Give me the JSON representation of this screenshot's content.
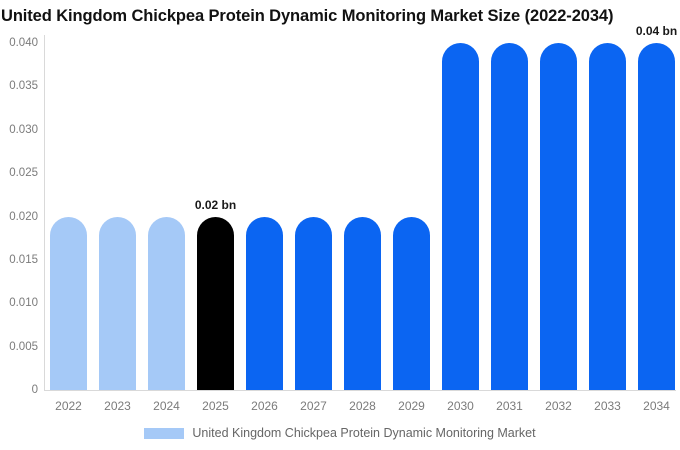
{
  "title": "United Kingdom Chickpea Protein Dynamic Monitoring Market Size (2022-2034)",
  "legend": {
    "label": "United Kingdom Chickpea Protein Dynamic Monitoring Market",
    "swatch_color": "#a5c9f7"
  },
  "colors": {
    "light_blue": "#a5c9f7",
    "blue": "#0b65f2",
    "black": "#000000",
    "axis_text": "#7b7b7b",
    "axis_line": "#d9d9d9",
    "annotation_text": "#1a1a1a"
  },
  "chart_data": {
    "type": "bar",
    "title": "United Kingdom Chickpea Protein Dynamic Monitoring Market Size (2022-2034)",
    "xlabel": "",
    "ylabel": "",
    "categories": [
      "2022",
      "2023",
      "2024",
      "2025",
      "2026",
      "2027",
      "2028",
      "2029",
      "2030",
      "2031",
      "2032",
      "2033",
      "2034"
    ],
    "values": [
      0.02,
      0.02,
      0.02,
      0.02,
      0.02,
      0.02,
      0.02,
      0.02,
      0.04,
      0.04,
      0.04,
      0.04,
      0.04
    ],
    "bar_colors": [
      "light_blue",
      "light_blue",
      "light_blue",
      "black",
      "blue",
      "blue",
      "blue",
      "blue",
      "blue",
      "blue",
      "blue",
      "blue",
      "blue"
    ],
    "annotations": [
      {
        "category": "2025",
        "index": 3,
        "text": "0.02 bn"
      },
      {
        "category": "2034",
        "index": 12,
        "text": "0.04 bn"
      }
    ],
    "yticks": [
      {
        "v": 0,
        "label": "0"
      },
      {
        "v": 0.005,
        "label": "0.005"
      },
      {
        "v": 0.01,
        "label": "0.010"
      },
      {
        "v": 0.015,
        "label": "0.015"
      },
      {
        "v": 0.02,
        "label": "0.020"
      },
      {
        "v": 0.025,
        "label": "0.025"
      },
      {
        "v": 0.03,
        "label": "0.030"
      },
      {
        "v": 0.035,
        "label": "0.035"
      },
      {
        "v": 0.04,
        "label": "0.040"
      }
    ],
    "ylim": [
      0,
      0.04
    ],
    "grid": false,
    "legend_position": "bottom",
    "legend_entries": [
      "United Kingdom Chickpea Protein Dynamic Monitoring Market"
    ]
  }
}
